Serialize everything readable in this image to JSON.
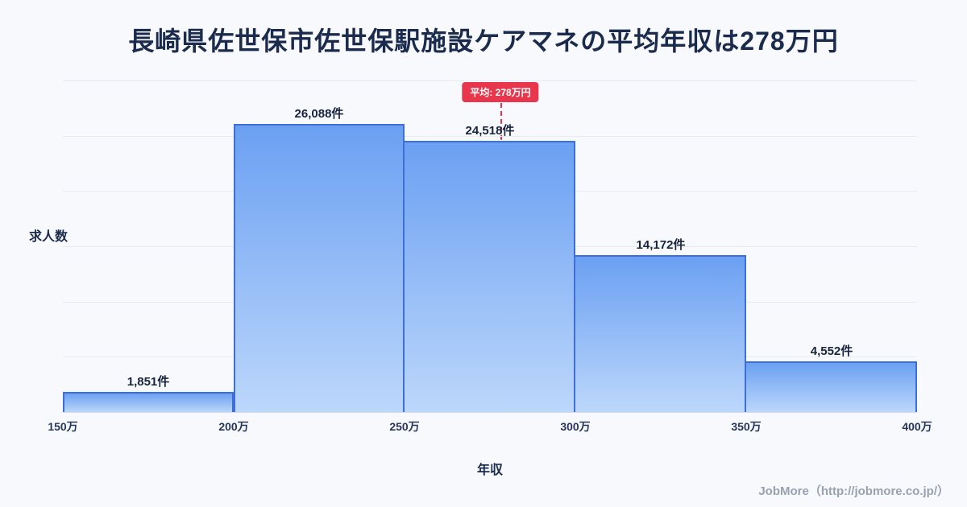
{
  "header": {
    "title": "長崎県佐世保市佐世保駅施設ケアマネの平均年収は278万円"
  },
  "footer": {
    "credit": "JobMore（http://jobmore.co.jp/）"
  },
  "chart_data": {
    "type": "bar",
    "subtype": "histogram",
    "title": "長崎県佐世保市佐世保駅施設ケアマネの平均年収は278万円",
    "xlabel": "年収",
    "ylabel": "求人数",
    "bin_edge_labels": [
      "150万",
      "200万",
      "250万",
      "300万",
      "350万",
      "400万"
    ],
    "x_range": [
      150,
      400
    ],
    "values": [
      1851,
      26088,
      24518,
      14172,
      4552
    ],
    "bar_labels": [
      "1,851件",
      "26,088件",
      "24,518件",
      "14,172件",
      "4,552件"
    ],
    "ylim": [
      0,
      30000
    ],
    "grid": true,
    "average_value": 278,
    "average_label": "平均: 278万円",
    "colors": {
      "bar_fill_top": "#6ba0f2",
      "bar_fill_bottom": "#bcd7fb",
      "bar_border": "#3d6fd6",
      "average_line": "#e8374d",
      "title_text": "#1b2b4d",
      "background": "#f7f9fc"
    },
    "legend": null
  }
}
